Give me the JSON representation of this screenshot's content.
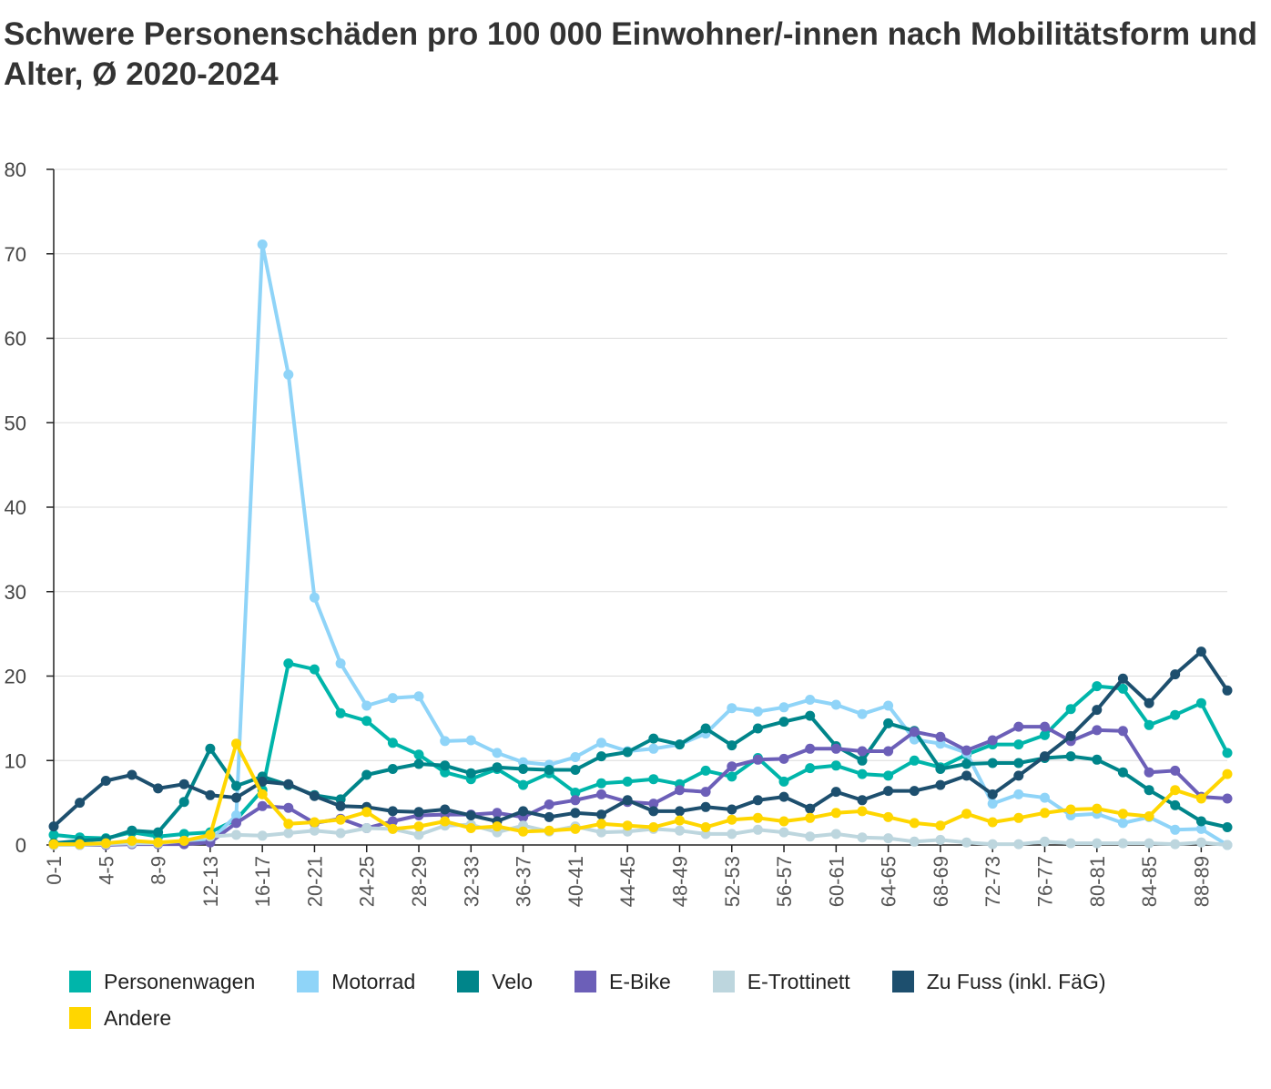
{
  "chart_data": {
    "type": "line",
    "title": "Schwere Personenschäden pro 100 000 Einwohner/-innen nach Mobilitätsform und Alter, Ø 2020-2024",
    "xlabel": "",
    "ylabel": "",
    "ylim": [
      0,
      80
    ],
    "yticks": [
      0,
      10,
      20,
      30,
      40,
      50,
      60,
      70,
      80
    ],
    "grid": true,
    "legend_position": "bottom",
    "categories": [
      "0-1",
      "2-3",
      "4-5",
      "6-7",
      "8-9",
      "10-11",
      "12-13",
      "14-15",
      "16-17",
      "18-19",
      "20-21",
      "22-23",
      "24-25",
      "26-27",
      "28-29",
      "30-31",
      "32-33",
      "34-35",
      "36-37",
      "38-39",
      "40-41",
      "42-43",
      "44-45",
      "46-47",
      "48-49",
      "50-51",
      "52-53",
      "54-55",
      "56-57",
      "58-59",
      "60-61",
      "62-63",
      "64-65",
      "66-67",
      "68-69",
      "70-71",
      "72-73",
      "74-75",
      "76-77",
      "78-79",
      "80-81",
      "82-83",
      "84-85",
      "86-87",
      "88-89",
      "90+"
    ],
    "x_tick_labels": [
      "0-1",
      "4-5",
      "8-9",
      "12-13",
      "16-17",
      "20-21",
      "24-25",
      "28-29",
      "32-33",
      "36-37",
      "40-41",
      "44-45",
      "48-49",
      "52-53",
      "56-57",
      "60-61",
      "64-65",
      "68-69",
      "72-73",
      "76-77",
      "80-81",
      "84-85",
      "88-89"
    ],
    "series": [
      {
        "name": "Personenwagen",
        "color": "#00B5AA",
        "values": [
          1.2,
          0.9,
          0.8,
          1.5,
          1.0,
          1.3,
          1.5,
          3.0,
          6.5,
          21.5,
          20.8,
          15.6,
          14.7,
          12.1,
          10.7,
          8.6,
          7.8,
          9.0,
          7.1,
          8.5,
          6.2,
          7.3,
          7.5,
          7.8,
          7.2,
          8.8,
          8.1,
          10.3,
          7.5,
          9.1,
          9.4,
          8.4,
          8.2,
          10.0,
          9.2,
          10.7,
          11.9,
          11.9,
          13.0,
          16.1,
          18.8,
          18.5,
          14.2,
          15.4,
          16.8,
          10.9
        ]
      },
      {
        "name": "Motorrad",
        "color": "#8FD4F8",
        "values": [
          0.1,
          0.1,
          0.2,
          0.3,
          0.3,
          0.3,
          0.5,
          3.5,
          71.1,
          55.7,
          29.3,
          21.5,
          16.5,
          17.4,
          17.6,
          12.3,
          12.4,
          10.9,
          9.8,
          9.5,
          10.4,
          12.1,
          11.1,
          11.4,
          11.9,
          13.2,
          16.2,
          15.8,
          16.3,
          17.2,
          16.6,
          15.5,
          16.5,
          12.5,
          12.0,
          10.9,
          4.9,
          6.0,
          5.6,
          3.5,
          3.7,
          2.6,
          3.3,
          1.8,
          1.9,
          0.0
        ]
      },
      {
        "name": "Velo",
        "color": "#00858A",
        "values": [
          0.2,
          0.5,
          0.7,
          1.7,
          1.5,
          5.1,
          11.4,
          7.0,
          8.1,
          7.1,
          5.9,
          5.4,
          8.3,
          9.0,
          9.6,
          9.4,
          8.5,
          9.2,
          9.0,
          8.9,
          8.9,
          10.5,
          11.0,
          12.6,
          11.9,
          13.8,
          11.8,
          13.8,
          14.6,
          15.3,
          11.7,
          10.0,
          14.4,
          13.5,
          9.0,
          9.6,
          9.7,
          9.7,
          10.3,
          10.5,
          10.1,
          8.6,
          6.5,
          4.7,
          2.8,
          2.1
        ]
      },
      {
        "name": "E-Bike",
        "color": "#6C5FB8",
        "values": [
          0.0,
          0.0,
          0.0,
          0.1,
          0.1,
          0.1,
          0.3,
          2.6,
          4.6,
          4.4,
          2.6,
          3.1,
          2.0,
          2.8,
          3.5,
          3.6,
          3.6,
          3.8,
          3.3,
          4.8,
          5.3,
          6.0,
          5.1,
          4.9,
          6.5,
          6.3,
          9.3,
          10.1,
          10.2,
          11.4,
          11.4,
          11.1,
          11.1,
          13.4,
          12.8,
          11.2,
          12.4,
          14.0,
          14.0,
          12.3,
          13.6,
          13.5,
          8.6,
          8.8,
          5.7,
          5.5
        ]
      },
      {
        "name": "E-Trottinett",
        "color": "#BDD6DE",
        "values": [
          0.0,
          0.0,
          0.1,
          0.2,
          0.2,
          0.5,
          1.0,
          1.2,
          1.1,
          1.4,
          1.7,
          1.4,
          2.0,
          1.9,
          1.2,
          2.3,
          2.4,
          1.5,
          2.3,
          1.6,
          2.2,
          1.5,
          1.6,
          1.9,
          1.7,
          1.3,
          1.3,
          1.8,
          1.5,
          1.0,
          1.3,
          0.9,
          0.8,
          0.4,
          0.6,
          0.3,
          0.1,
          0.1,
          0.4,
          0.2,
          0.2,
          0.2,
          0.2,
          0.1,
          0.3,
          0.0
        ]
      },
      {
        "name": "Zu Fuss (inkl. FäG)",
        "color": "#1D4F6E",
        "values": [
          2.2,
          5.0,
          7.6,
          8.3,
          6.7,
          7.2,
          5.9,
          5.6,
          7.5,
          7.2,
          5.8,
          4.6,
          4.5,
          4.0,
          3.9,
          4.2,
          3.5,
          2.8,
          4.0,
          3.3,
          3.8,
          3.6,
          5.3,
          4.0,
          4.0,
          4.5,
          4.2,
          5.3,
          5.7,
          4.3,
          6.3,
          5.3,
          6.4,
          6.4,
          7.1,
          8.2,
          6.0,
          8.2,
          10.5,
          12.9,
          16.0,
          19.7,
          16.8,
          20.2,
          22.9,
          18.3
        ]
      },
      {
        "name": "Andere",
        "color": "#FFD600",
        "values": [
          0.1,
          0.1,
          0.2,
          0.5,
          0.3,
          0.5,
          1.2,
          12.0,
          6.0,
          2.5,
          2.7,
          3.0,
          3.9,
          1.9,
          2.2,
          2.8,
          2.0,
          2.2,
          1.6,
          1.7,
          1.9,
          2.5,
          2.3,
          2.1,
          2.9,
          2.1,
          3.0,
          3.2,
          2.8,
          3.2,
          3.8,
          4.0,
          3.3,
          2.6,
          2.3,
          3.7,
          2.7,
          3.2,
          3.8,
          4.2,
          4.3,
          3.7,
          3.4,
          6.5,
          5.5,
          8.4
        ]
      }
    ]
  }
}
